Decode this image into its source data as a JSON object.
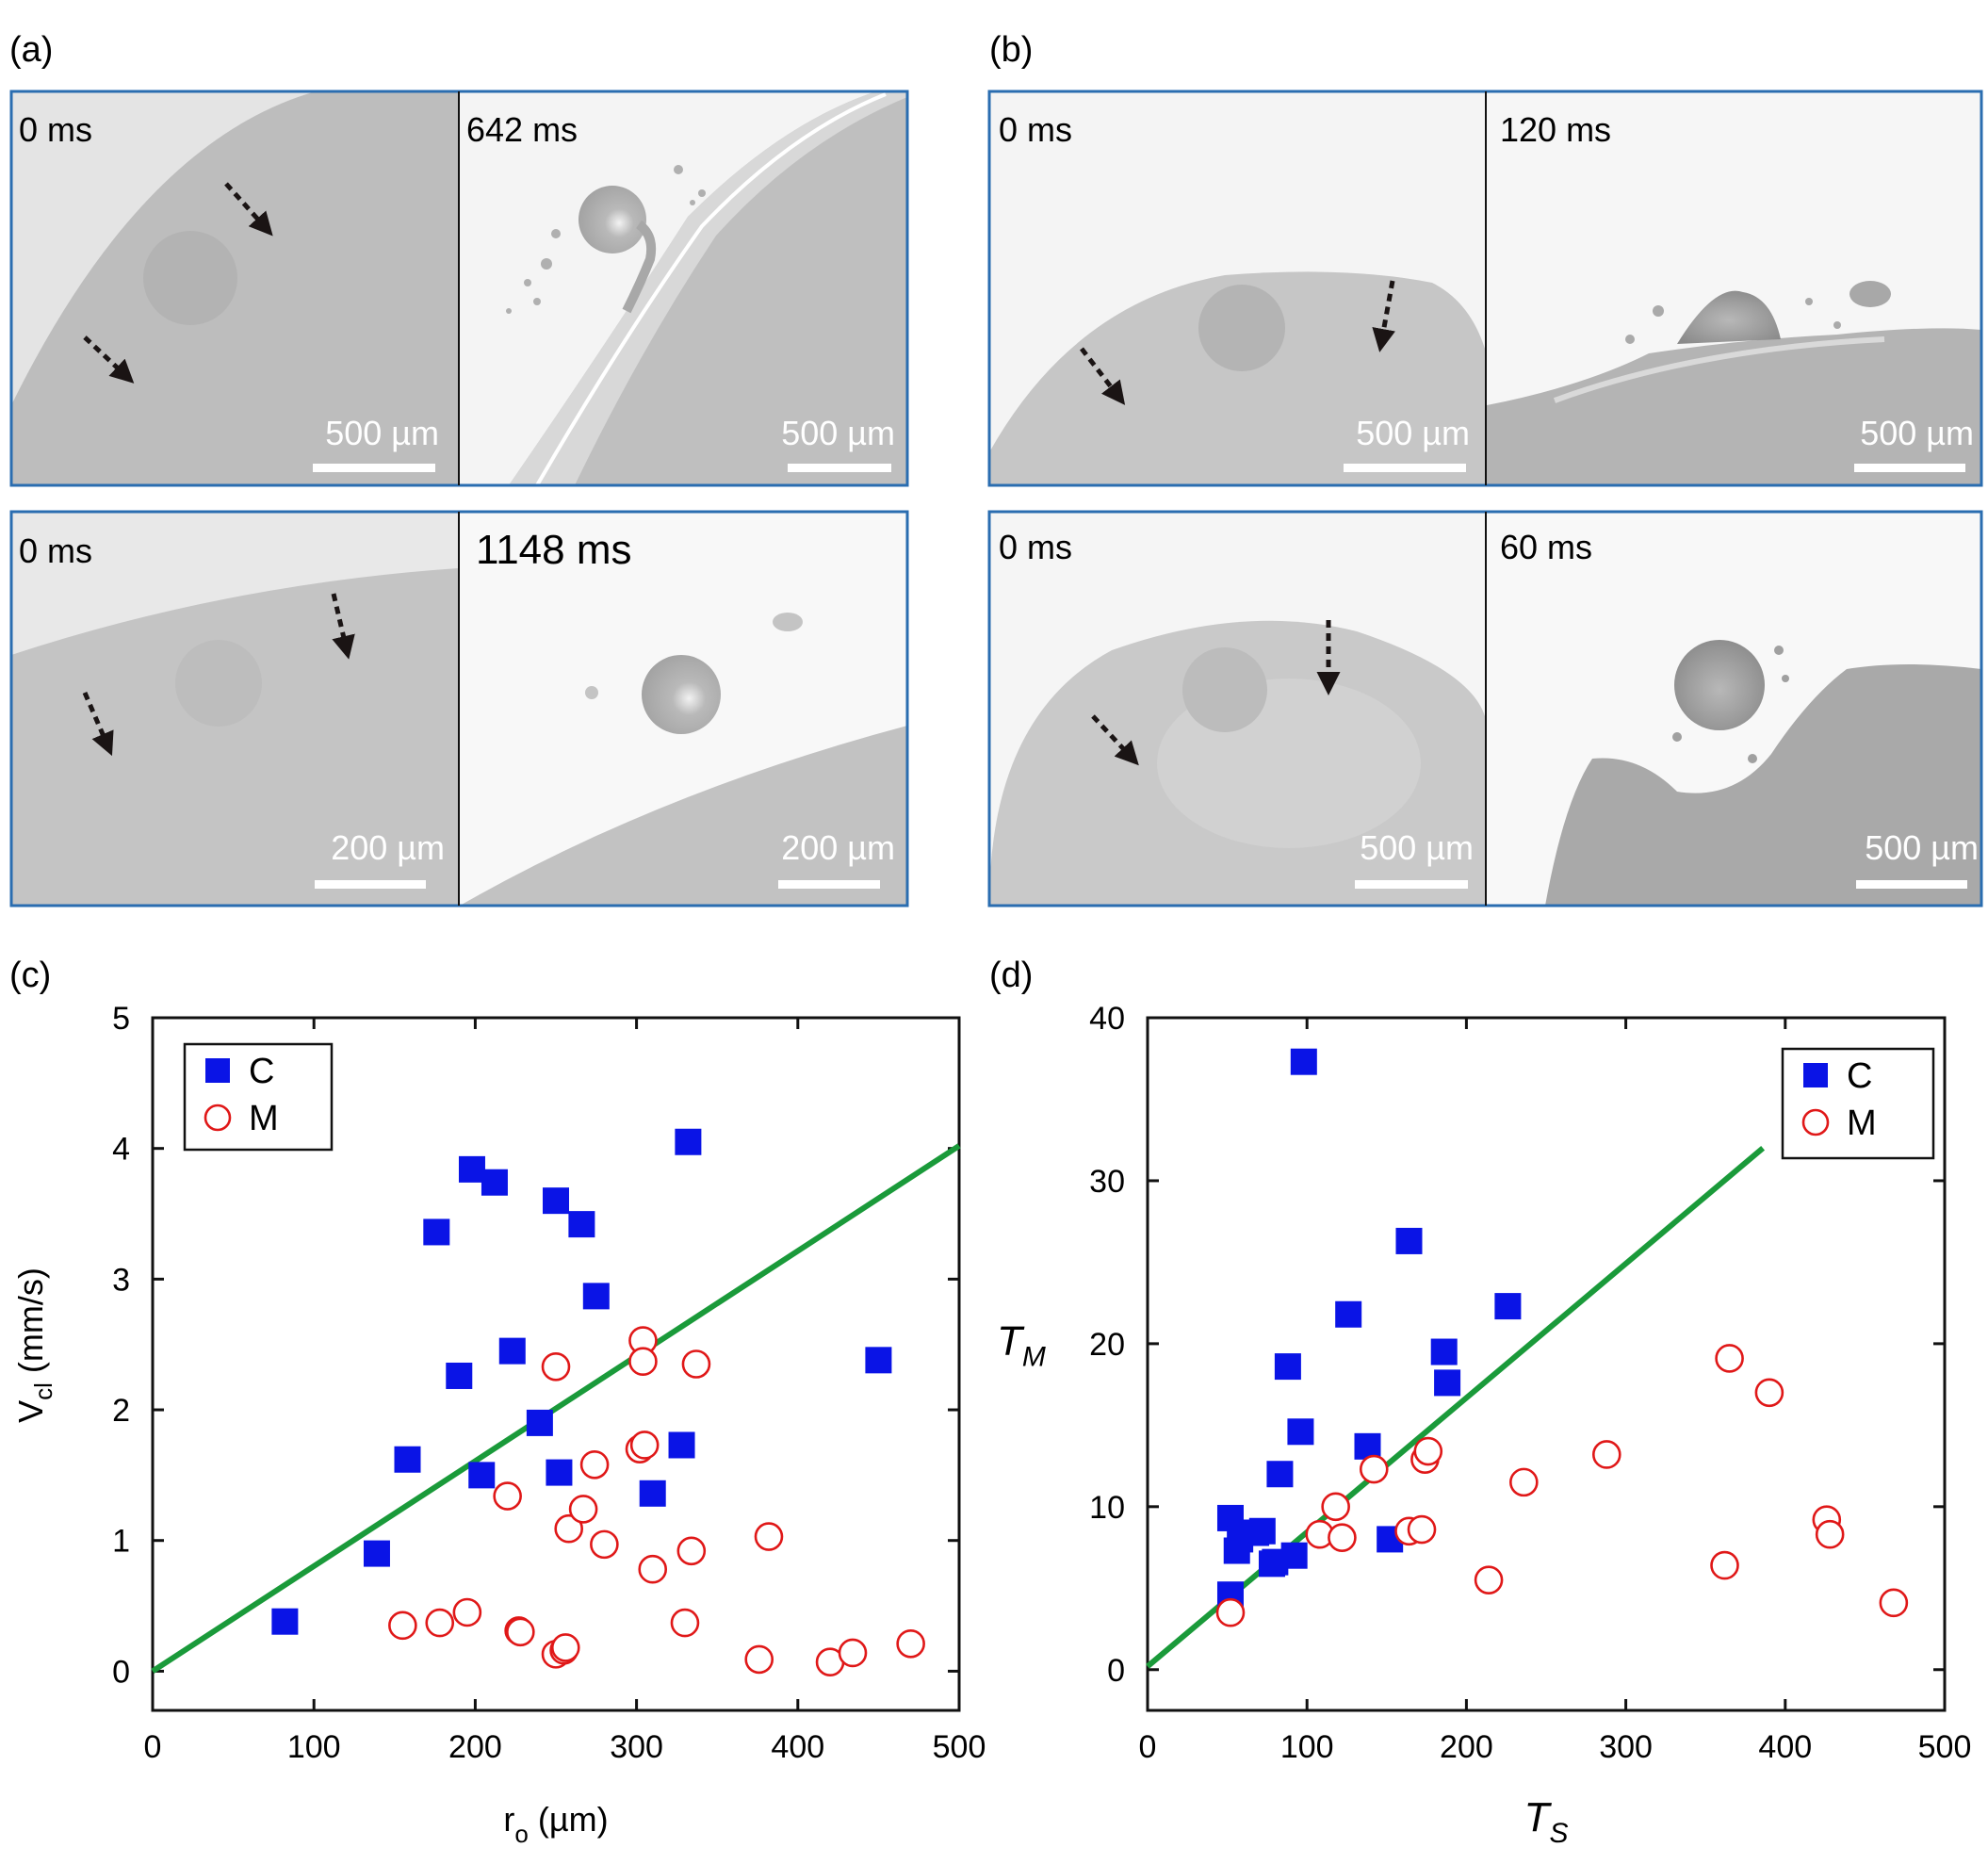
{
  "panels": {
    "a": {
      "label": "(a)",
      "rows": [
        {
          "left": {
            "time": "0 ms",
            "scale": "500 µm"
          },
          "right": {
            "time": "642 ms",
            "scale": "500 µm"
          }
        },
        {
          "left": {
            "time": "0 ms",
            "scale": "200 µm"
          },
          "right": {
            "time": "1148 ms",
            "scale": "200 µm"
          }
        }
      ]
    },
    "b": {
      "label": "(b)",
      "rows": [
        {
          "left": {
            "time": "0 ms",
            "scale": "500 µm"
          },
          "right": {
            "time": "120 ms",
            "scale": "500 µm"
          }
        },
        {
          "left": {
            "time": "0 ms",
            "scale": "500 µm"
          },
          "right": {
            "time": "60 ms",
            "scale": "500 µm"
          }
        }
      ]
    },
    "c": {
      "label": "(c)"
    },
    "d": {
      "label": "(d)"
    }
  },
  "colors": {
    "frame": "#2a6db0",
    "series_c": "#0a14e6",
    "series_m": "#e01818",
    "fit": "#1a9a3a"
  },
  "chart_data": [
    {
      "panel": "c",
      "type": "scatter",
      "xlabel": "r",
      "xlabel_sub": "o",
      "xlabel_unit": " (µm)",
      "ylabel": "V",
      "ylabel_sub": "cl",
      "ylabel_unit": " (mm/s)",
      "xlim": [
        0,
        500
      ],
      "ylim": [
        -0.3,
        5
      ],
      "xticks": [
        0,
        100,
        200,
        300,
        400,
        500
      ],
      "yticks": [
        0,
        1,
        2,
        3,
        4,
        5
      ],
      "legend_position": "top-left",
      "series": [
        {
          "name": "C",
          "marker": "square",
          "x": [
            82,
            139,
            158,
            176,
            190,
            198,
            204,
            212,
            223,
            240,
            250,
            252,
            266,
            275,
            310,
            328,
            332,
            450
          ],
          "y": [
            0.38,
            0.9,
            1.62,
            3.36,
            2.26,
            3.84,
            1.5,
            3.74,
            2.45,
            1.9,
            3.6,
            1.52,
            3.42,
            2.87,
            1.36,
            1.73,
            4.05,
            2.38
          ]
        },
        {
          "name": "M",
          "marker": "circle",
          "x": [
            155,
            178,
            195,
            220,
            227,
            228,
            250,
            250,
            255,
            256,
            258,
            267,
            274,
            280,
            302,
            304,
            304,
            305,
            310,
            330,
            334,
            337,
            376,
            382,
            420,
            434,
            470
          ],
          "y": [
            0.35,
            0.37,
            0.45,
            1.34,
            0.31,
            0.3,
            2.33,
            0.13,
            0.16,
            0.18,
            1.09,
            1.24,
            1.58,
            0.97,
            1.7,
            2.53,
            2.37,
            1.73,
            0.78,
            0.37,
            0.92,
            2.35,
            0.09,
            1.03,
            0.07,
            0.14,
            0.21
          ]
        }
      ],
      "fit_line": {
        "x": [
          0,
          500
        ],
        "y": [
          0,
          4.02
        ]
      }
    },
    {
      "panel": "d",
      "type": "scatter",
      "xlabel": "T",
      "xlabel_sub": "S",
      "ylabel": "T",
      "ylabel_sub": "M",
      "xlim": [
        0,
        500
      ],
      "ylim": [
        -2.5,
        40
      ],
      "xticks": [
        0,
        100,
        200,
        300,
        400,
        500
      ],
      "yticks": [
        0,
        10,
        20,
        30,
        40
      ],
      "legend_position": "top-right",
      "series": [
        {
          "name": "C",
          "marker": "square",
          "x": [
            52,
            52,
            56,
            58,
            68,
            72,
            78,
            80,
            83,
            88,
            92,
            96,
            98,
            126,
            138,
            152,
            164,
            186,
            188,
            226
          ],
          "y": [
            4.6,
            9.3,
            7.3,
            8.0,
            8.4,
            8.5,
            6.5,
            6.6,
            12.0,
            18.6,
            7.0,
            14.6,
            37.3,
            21.8,
            13.7,
            8.0,
            26.3,
            19.5,
            17.6,
            22.3
          ]
        },
        {
          "name": "M",
          "marker": "circle",
          "x": [
            52,
            108,
            118,
            122,
            142,
            164,
            172,
            174,
            176,
            214,
            236,
            288,
            362,
            365,
            390,
            426,
            428,
            468
          ],
          "y": [
            3.5,
            8.3,
            10.0,
            8.1,
            12.3,
            8.5,
            8.6,
            12.9,
            13.4,
            5.5,
            11.5,
            13.2,
            6.4,
            19.1,
            17.0,
            9.2,
            8.3,
            4.1
          ]
        }
      ],
      "fit_line": {
        "x": [
          0,
          386
        ],
        "y": [
          0.2,
          32.0
        ]
      }
    }
  ]
}
